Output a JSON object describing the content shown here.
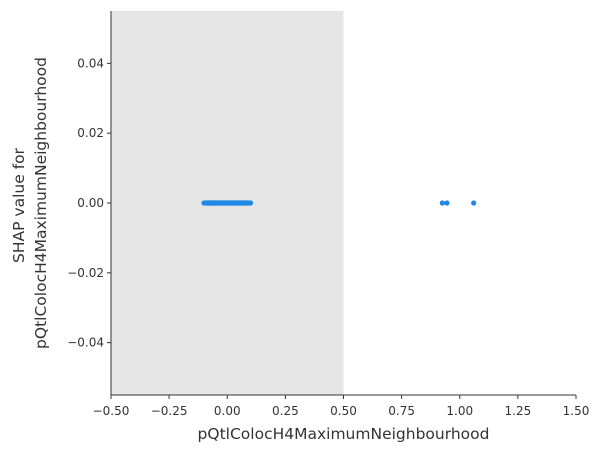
{
  "chart_data": {
    "type": "scatter",
    "title": "",
    "xlabel": "pQtlColocH4MaximumNeighbourhood",
    "ylabel_lines": [
      "SHAP value for",
      "pQtlColocH4MaximumNeighbourhood"
    ],
    "xlim": [
      -0.5,
      1.5
    ],
    "ylim": [
      -0.055,
      0.055
    ],
    "x_ticks": [
      -0.5,
      -0.25,
      0.0,
      0.25,
      0.5,
      0.75,
      1.0,
      1.25,
      1.5
    ],
    "x_tick_labels": [
      "−0.50",
      "−0.25",
      "0.00",
      "0.25",
      "0.50",
      "0.75",
      "1.00",
      "1.25",
      "1.50"
    ],
    "y_ticks": [
      0.04,
      0.02,
      0.0,
      -0.02,
      -0.04
    ],
    "y_tick_labels": [
      "0.04",
      "0.02",
      "0.00",
      "−0.02",
      "−0.04"
    ],
    "shaded_region": {
      "x0": -0.5,
      "x1": 0.5,
      "color": "#e5e5e5"
    },
    "point_color": "#1e88e5",
    "series": [
      {
        "x": [
          -0.1,
          -0.09,
          -0.08,
          -0.07,
          -0.06,
          -0.05,
          -0.04,
          -0.03,
          -0.02,
          -0.01,
          0.0,
          0.01,
          0.02,
          0.03,
          0.04,
          0.05,
          0.06,
          0.07,
          0.08,
          0.09,
          0.1,
          0.925,
          0.945,
          1.06
        ],
        "y": [
          0,
          0,
          0,
          0,
          0,
          0,
          0,
          0,
          0,
          0,
          0,
          0,
          0,
          0,
          0,
          0,
          0,
          0,
          0,
          0,
          0,
          0,
          0,
          0
        ]
      }
    ],
    "grid": false
  }
}
